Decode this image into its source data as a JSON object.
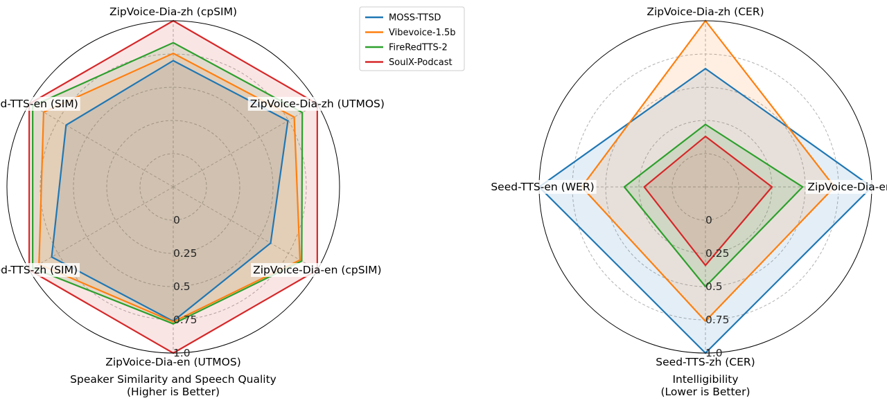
{
  "chart_data": [
    {
      "type": "radar",
      "title": "Speaker Similarity and Speech Quality",
      "subtitle": "(Higher is Better)",
      "axes": [
        "ZipVoice-Dia-zh (cpSIM)",
        "ZipVoice-Dia-zh (UTMOS)",
        "ZipVoice-Dia-en (cpSIM)",
        "ZipVoice-Dia-en (UTMOS)",
        "Seed-TTS-zh (SIM)",
        "Seed-TTS-en (SIM)"
      ],
      "radial_ticks": [
        "0",
        "0.25",
        "0.5",
        "0.75",
        "1.0"
      ],
      "radial_range": [
        0,
        1
      ],
      "grid": true,
      "series": [
        {
          "name": "MOSS-TTSD",
          "color": "#1f77b4",
          "values": [
            0.7,
            0.745,
            0.595,
            0.76,
            0.805,
            0.68
          ]
        },
        {
          "name": "Vibevoice-1.5b",
          "color": "#ff7f0e",
          "values": [
            0.755,
            0.8,
            0.85,
            0.765,
            0.915,
            0.875
          ]
        },
        {
          "name": "FireRedTTS-2",
          "color": "#2ca02c",
          "values": [
            0.835,
            0.87,
            0.865,
            0.78,
            0.97,
            0.97
          ]
        },
        {
          "name": "SoulX-Podcast",
          "color": "#d62728",
          "values": [
            1.0,
            1.0,
            1.0,
            1.0,
            1.0,
            1.0
          ]
        }
      ]
    },
    {
      "type": "radar",
      "title": "Intelligibility",
      "subtitle": "(Lower is Better)",
      "axes": [
        "ZipVoice-Dia-zh (CER)",
        "ZipVoice-Dia-en (WER)",
        "Seed-TTS-zh (CER)",
        "Seed-TTS-en (WER)"
      ],
      "radial_ticks": [
        "0",
        "0.25",
        "0.5",
        "0.75",
        "1.0"
      ],
      "radial_range": [
        0,
        1
      ],
      "grid": true,
      "series": [
        {
          "name": "MOSS-TTSD",
          "color": "#1f77b4",
          "values": [
            0.64,
            1.0,
            1.0,
            1.0
          ]
        },
        {
          "name": "Vibevoice-1.5b",
          "color": "#ff7f0e",
          "values": [
            1.0,
            0.72,
            0.76,
            0.68
          ]
        },
        {
          "name": "FireRedTTS-2",
          "color": "#2ca02c",
          "values": [
            0.22,
            0.48,
            0.5,
            0.36
          ]
        },
        {
          "name": "SoulX-Podcast",
          "color": "#d62728",
          "values": [
            0.13,
            0.25,
            0.34,
            0.21
          ]
        }
      ]
    }
  ],
  "legend": {
    "placement": "top-center",
    "items": [
      {
        "name": "MOSS-TTSD",
        "color": "#1f77b4"
      },
      {
        "name": "Vibevoice-1.5b",
        "color": "#ff7f0e"
      },
      {
        "name": "FireRedTTS-2",
        "color": "#2ca02c"
      },
      {
        "name": "SoulX-Podcast",
        "color": "#d62728"
      }
    ]
  }
}
